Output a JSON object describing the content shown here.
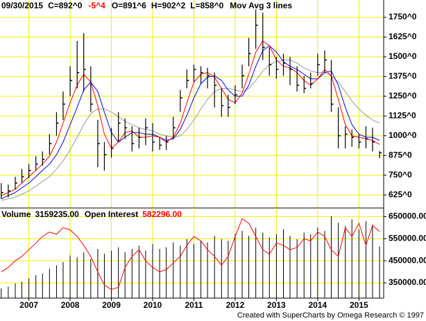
{
  "chart_data": [
    {
      "type": "ohlc",
      "header": [
        "09/30/2015",
        "C=892^0",
        "-5^4",
        "O=891^6",
        "H=902^2",
        "L=858^0",
        "Mov Avg 3 lines"
      ],
      "x": [
        2006.33,
        2006.5,
        2006.67,
        2006.83,
        2007,
        2007.17,
        2007.33,
        2007.5,
        2007.67,
        2007.83,
        2008,
        2008.17,
        2008.33,
        2008.5,
        2008.67,
        2008.83,
        2009,
        2009.17,
        2009.33,
        2009.5,
        2009.67,
        2009.83,
        2010,
        2010.17,
        2010.33,
        2010.5,
        2010.67,
        2010.83,
        2011,
        2011.17,
        2011.33,
        2011.5,
        2011.67,
        2011.83,
        2012,
        2012.17,
        2012.33,
        2012.5,
        2012.67,
        2012.83,
        2013,
        2013.17,
        2013.33,
        2013.5,
        2013.67,
        2013.83,
        2014,
        2014.17,
        2014.33,
        2014.5,
        2014.67,
        2014.83,
        2015,
        2015.17,
        2015.33,
        2015.5
      ],
      "high": [
        700,
        690,
        740,
        790,
        820,
        870,
        900,
        1010,
        1150,
        1280,
        1440,
        1600,
        1650,
        1440,
        1100,
        960,
        1050,
        1150,
        1110,
        1060,
        1050,
        1110,
        1080,
        990,
        1000,
        1120,
        1290,
        1420,
        1450,
        1440,
        1430,
        1400,
        1300,
        1260,
        1320,
        1450,
        1620,
        1800,
        1780,
        1560,
        1500,
        1520,
        1500,
        1440,
        1380,
        1400,
        1520,
        1540,
        1480,
        1180,
        1060,
        1040,
        1010,
        1060,
        1050,
        902
      ],
      "low": [
        600,
        610,
        660,
        700,
        730,
        780,
        810,
        880,
        1000,
        1100,
        1250,
        1300,
        1280,
        1150,
        800,
        780,
        860,
        960,
        980,
        900,
        920,
        940,
        900,
        910,
        910,
        980,
        1150,
        1300,
        1340,
        1330,
        1300,
        1180,
        1120,
        1120,
        1200,
        1300,
        1440,
        1550,
        1480,
        1380,
        1360,
        1380,
        1320,
        1280,
        1270,
        1300,
        1380,
        1400,
        1150,
        920,
        920,
        930,
        920,
        920,
        900,
        858
      ],
      "close": [
        640,
        650,
        700,
        740,
        780,
        820,
        850,
        950,
        1080,
        1200,
        1350,
        1400,
        1420,
        1200,
        950,
        880,
        920,
        1080,
        1050,
        950,
        990,
        1050,
        960,
        940,
        960,
        1050,
        1240,
        1350,
        1420,
        1400,
        1380,
        1320,
        1190,
        1180,
        1260,
        1380,
        1520,
        1700,
        1560,
        1450,
        1420,
        1460,
        1420,
        1320,
        1300,
        1330,
        1450,
        1480,
        1200,
        1000,
        1010,
        990,
        960,
        980,
        960,
        892
      ],
      "color": "#000000",
      "ma_lines": [
        {
          "color": "#ff0000",
          "values": [
            620,
            640,
            660,
            700,
            740,
            780,
            820,
            870,
            960,
            1080,
            1210,
            1320,
            1390,
            1340,
            1190,
            1010,
            920,
            960,
            1020,
            1030,
            990,
            990,
            1000,
            990,
            960,
            990,
            1080,
            1210,
            1340,
            1390,
            1400,
            1370,
            1300,
            1230,
            1210,
            1270,
            1390,
            1530,
            1600,
            1570,
            1480,
            1440,
            1430,
            1400,
            1350,
            1320,
            1360,
            1420,
            1380,
            1230,
            1070,
            1000,
            990,
            980,
            970,
            945
          ]
        },
        {
          "color": "#0000ff",
          "values": [
            600,
            620,
            640,
            670,
            700,
            740,
            780,
            820,
            880,
            960,
            1070,
            1180,
            1290,
            1340,
            1280,
            1150,
            1020,
            960,
            990,
            1020,
            1020,
            1010,
            1010,
            990,
            970,
            980,
            1040,
            1130,
            1240,
            1330,
            1370,
            1380,
            1350,
            1290,
            1250,
            1250,
            1320,
            1440,
            1540,
            1570,
            1530,
            1470,
            1440,
            1420,
            1390,
            1360,
            1360,
            1400,
            1410,
            1320,
            1180,
            1070,
            1010,
            990,
            990,
            970
          ]
        },
        {
          "color": "#999999",
          "values": [
            590,
            600,
            610,
            630,
            650,
            680,
            710,
            740,
            790,
            840,
            910,
            990,
            1070,
            1140,
            1170,
            1170,
            1150,
            1120,
            1090,
            1070,
            1050,
            1040,
            1030,
            1010,
            1000,
            990,
            1000,
            1040,
            1100,
            1170,
            1230,
            1280,
            1300,
            1300,
            1290,
            1280,
            1300,
            1350,
            1410,
            1450,
            1470,
            1480,
            1480,
            1460,
            1430,
            1410,
            1400,
            1400,
            1380,
            1340,
            1280,
            1220,
            1170,
            1130,
            1100,
            1080
          ]
        }
      ],
      "xlim": [
        2006.3,
        2015.6
      ],
      "xticks": [
        2007,
        2008,
        2009,
        2010,
        2011,
        2012,
        2013,
        2014,
        2015
      ],
      "ylim": [
        542,
        1860
      ],
      "yticks": [
        {
          "value": 1750,
          "label": "1750^0"
        },
        {
          "value": 1625,
          "label": "1625^0"
        },
        {
          "value": 1500,
          "label": "1500^0"
        },
        {
          "value": 1375,
          "label": "1375^0"
        },
        {
          "value": 1250,
          "label": "1250^0"
        },
        {
          "value": 1125,
          "label": "1125^0"
        },
        {
          "value": 1000,
          "label": "1000^0"
        },
        {
          "value": 875,
          "label": "875^0"
        },
        {
          "value": 750,
          "label": "750^0"
        },
        {
          "value": 625,
          "label": "625^0"
        }
      ],
      "grid": true,
      "grid_color": "#f0f000"
    },
    {
      "type": "volume",
      "labels": [
        "Volume",
        "3159235.00",
        "Open Interest",
        "582296.00"
      ],
      "volume": {
        "color": "#000000",
        "values": [
          600000,
          700000,
          900000,
          1000000,
          1200000,
          1400000,
          1500000,
          1800000,
          2000000,
          2200000,
          2600000,
          2500000,
          2800000,
          2400000,
          3000000,
          2700000,
          2900000,
          3100000,
          2800000,
          3000000,
          3200000,
          2900000,
          3300000,
          3000000,
          3100000,
          3400000,
          3200000,
          3600000,
          3300000,
          3500000,
          3400000,
          3800000,
          3600000,
          3500000,
          3900000,
          4100000,
          3800000,
          4300000,
          4000000,
          3700000,
          3900000,
          4200000,
          3800000,
          3600000,
          4000000,
          3900000,
          4300000,
          4100000,
          5000000,
          4600000,
          4400000,
          4800000,
          4200000,
          4700000,
          4500000,
          3159235
        ]
      },
      "open_interest": {
        "color": "#ff0000",
        "values": [
          400000,
          420000,
          450000,
          470000,
          500000,
          530000,
          560000,
          580000,
          570000,
          600000,
          590000,
          560000,
          520000,
          470000,
          400000,
          340000,
          320000,
          330000,
          420000,
          470000,
          500000,
          450000,
          420000,
          400000,
          410000,
          440000,
          470000,
          520000,
          560000,
          540000,
          500000,
          470000,
          430000,
          470000,
          560000,
          640000,
          620000,
          560000,
          500000,
          480000,
          530000,
          520000,
          500000,
          510000,
          550000,
          540000,
          580000,
          560000,
          500000,
          470000,
          600000,
          560000,
          620000,
          520000,
          610000,
          582296
        ]
      },
      "xlim": [
        2006.3,
        2015.6
      ],
      "xticks": [
        2007,
        2008,
        2009,
        2010,
        2011,
        2012,
        2013,
        2014,
        2015
      ],
      "ylim": [
        281000,
        689000
      ],
      "yticks": [
        {
          "value": 650000,
          "label": "650000.00"
        },
        {
          "value": 550000,
          "label": "550000.00"
        },
        {
          "value": 450000,
          "label": "450000.00"
        },
        {
          "value": 350000,
          "label": "350000.00"
        }
      ],
      "y2lim": [
        0,
        5500000
      ],
      "grid": true,
      "grid_color": "#f0f000",
      "footer": "Created with SuperCharts by Omega Research © 1997"
    }
  ]
}
